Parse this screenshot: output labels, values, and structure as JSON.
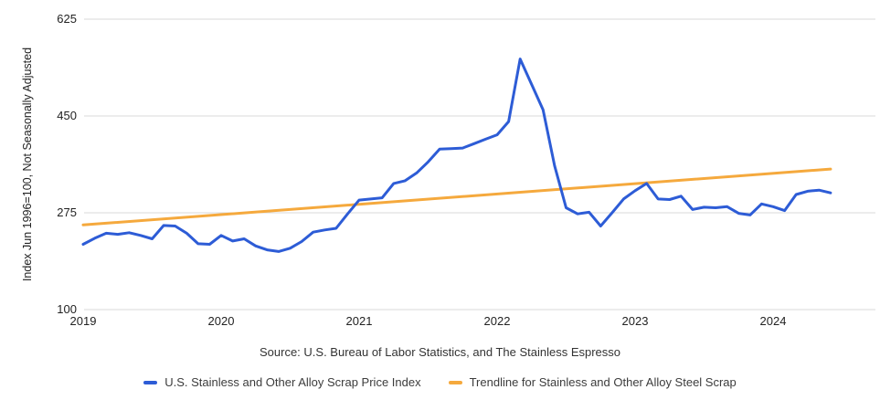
{
  "chart_data": {
    "type": "line",
    "title": "",
    "ylabel": "Index Jun 1996=100, Not Seasonally Adjusted",
    "xlabel": "",
    "source_note": "Source: U.S. Bureau of Labor Statistics, and The Stainless Espresso",
    "x_tick_labels": [
      "2019",
      "2020",
      "2021",
      "2022",
      "2023",
      "2024"
    ],
    "y_tick_labels": [
      "625",
      "450",
      "275",
      "100"
    ],
    "y_ticks": [
      100,
      275,
      450,
      625
    ],
    "ylim": [
      100,
      625
    ],
    "x_range": {
      "start": "2019-01",
      "end": "2024-06",
      "interval": "monthly"
    },
    "grid": "horizontal-only",
    "legend_position": "bottom",
    "colors": {
      "series_blue": "#2d5cd6",
      "trendline_orange": "#f5a93d",
      "gridline_gray": "#d9d9d9"
    },
    "series": [
      {
        "name": "U.S. Stainless and Other Alloy Scrap Price Index",
        "color": "#2d5cd6",
        "type": "line",
        "values": [
          218,
          229,
          238,
          236,
          239,
          234,
          228,
          252,
          251,
          238,
          219,
          218,
          234,
          224,
          228,
          215,
          208,
          205,
          211,
          223,
          240,
          244,
          247,
          273,
          298,
          300,
          302,
          328,
          333,
          347,
          367,
          390,
          391,
          392,
          400,
          408,
          416,
          440,
          553,
          507,
          461,
          360,
          284,
          273,
          276,
          251,
          275,
          300,
          315,
          328,
          300,
          299,
          305,
          281,
          285,
          284,
          286,
          274,
          271,
          291,
          286,
          279,
          308,
          314,
          316,
          311
        ]
      },
      {
        "name": "Trendline for Stainless and Other Alloy Steel Scrap",
        "color": "#f5a93d",
        "type": "trendline",
        "start_value": 253,
        "end_value": 354
      }
    ]
  }
}
